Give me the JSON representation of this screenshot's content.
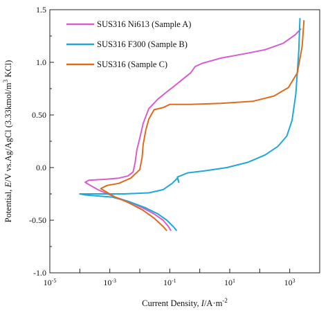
{
  "chart_data": {
    "type": "line",
    "xscale": "log",
    "x_ticks": [
      {
        "v": 1e-05,
        "base": "10",
        "exp": "-5"
      },
      {
        "v": 0.001,
        "base": "10",
        "exp": "-3"
      },
      {
        "v": 0.1,
        "base": "10",
        "exp": "-1"
      },
      {
        "v": 10.0,
        "base": "10",
        "exp": "1"
      },
      {
        "v": 1000.0,
        "base": "10",
        "exp": "3"
      }
    ],
    "y_ticks": [
      {
        "v": -1.0,
        "label": "-1.0"
      },
      {
        "v": -0.5,
        "label": "-0.50"
      },
      {
        "v": 0.0,
        "label": "0.0"
      },
      {
        "v": 0.5,
        "label": "0.50"
      },
      {
        "v": 1.0,
        "label": "1.0"
      },
      {
        "v": 1.5,
        "label": "1.5"
      }
    ],
    "xlim": [
      1e-05,
      10000.0
    ],
    "ylim": [
      -1.0,
      1.5
    ],
    "xlabel": {
      "pre": "Current Density, ",
      "italic": "I",
      "post": "/A·m",
      "sup": "-2"
    },
    "ylabel": {
      "pre": "Potential, ",
      "italic": "E",
      "post": "/V vs.Ag/AgCl (3.33kmol/m",
      "sup": "3",
      "post2": " KCl)"
    },
    "legend_position": "top-left",
    "grid": false,
    "series": [
      {
        "name": "SUS316 Ni613 (Sample A)",
        "color": "#d85ccf",
        "points": [
          [
            0.11,
            -0.6
          ],
          [
            0.09,
            -0.56
          ],
          [
            0.06,
            -0.5
          ],
          [
            0.03,
            -0.44
          ],
          [
            0.012,
            -0.38
          ],
          [
            0.005,
            -0.33
          ],
          [
            0.0015,
            -0.28
          ],
          [
            0.0004,
            -0.21
          ],
          [
            0.00015,
            -0.14
          ],
          [
            0.0002,
            -0.12
          ],
          [
            0.0008,
            -0.11
          ],
          [
            0.002,
            -0.1
          ],
          [
            0.004,
            -0.08
          ],
          [
            0.006,
            -0.04
          ],
          [
            0.007,
            0.05
          ],
          [
            0.008,
            0.17
          ],
          [
            0.01,
            0.28
          ],
          [
            0.013,
            0.42
          ],
          [
            0.02,
            0.56
          ],
          [
            0.04,
            0.65
          ],
          [
            0.08,
            0.72
          ],
          [
            0.15,
            0.78
          ],
          [
            0.3,
            0.85
          ],
          [
            0.5,
            0.9
          ],
          [
            0.7,
            0.96
          ],
          [
            1.2,
            0.99
          ],
          [
            5,
            1.04
          ],
          [
            30,
            1.08
          ],
          [
            150,
            1.12
          ],
          [
            600,
            1.18
          ],
          [
            1500,
            1.26
          ],
          [
            2400,
            1.32
          ]
        ]
      },
      {
        "name": "SUS316 F300 (Sample B)",
        "color": "#1fa7d6",
        "points": [
          [
            0.17,
            -0.6
          ],
          [
            0.14,
            -0.57
          ],
          [
            0.08,
            -0.5
          ],
          [
            0.04,
            -0.44
          ],
          [
            0.015,
            -0.38
          ],
          [
            0.004,
            -0.32
          ],
          [
            0.0012,
            -0.28
          ],
          [
            0.00015,
            -0.26
          ],
          [
            0.0001,
            -0.25
          ],
          [
            0.0007,
            -0.25
          ],
          [
            0.003,
            -0.25
          ],
          [
            0.02,
            -0.24
          ],
          [
            0.06,
            -0.21
          ],
          [
            0.12,
            -0.15
          ],
          [
            0.18,
            -0.1
          ],
          [
            0.2,
            -0.14
          ],
          [
            0.18,
            -0.09
          ],
          [
            0.4,
            -0.05
          ],
          [
            1.5,
            -0.03
          ],
          [
            8,
            0.0
          ],
          [
            40,
            0.05
          ],
          [
            150,
            0.12
          ],
          [
            400,
            0.2
          ],
          [
            800,
            0.3
          ],
          [
            1200,
            0.45
          ],
          [
            1600,
            0.7
          ],
          [
            2000,
            1.1
          ],
          [
            2200,
            1.42
          ]
        ]
      },
      {
        "name": "SUS316 (Sample C)",
        "color": "#e06a1c",
        "points": [
          [
            0.08,
            -0.6
          ],
          [
            0.06,
            -0.56
          ],
          [
            0.03,
            -0.48
          ],
          [
            0.012,
            -0.4
          ],
          [
            0.004,
            -0.33
          ],
          [
            0.0015,
            -0.28
          ],
          [
            0.0005,
            -0.2
          ],
          [
            0.0008,
            -0.17
          ],
          [
            0.002,
            -0.15
          ],
          [
            0.005,
            -0.1
          ],
          [
            0.01,
            -0.02
          ],
          [
            0.012,
            0.1
          ],
          [
            0.013,
            0.22
          ],
          [
            0.016,
            0.36
          ],
          [
            0.02,
            0.46
          ],
          [
            0.03,
            0.55
          ],
          [
            0.06,
            0.57
          ],
          [
            0.1,
            0.6
          ],
          [
            0.5,
            0.6
          ],
          [
            5,
            0.61
          ],
          [
            60,
            0.63
          ],
          [
            300,
            0.68
          ],
          [
            900,
            0.76
          ],
          [
            1800,
            0.9
          ],
          [
            2600,
            1.15
          ],
          [
            3000,
            1.4
          ]
        ]
      }
    ]
  }
}
